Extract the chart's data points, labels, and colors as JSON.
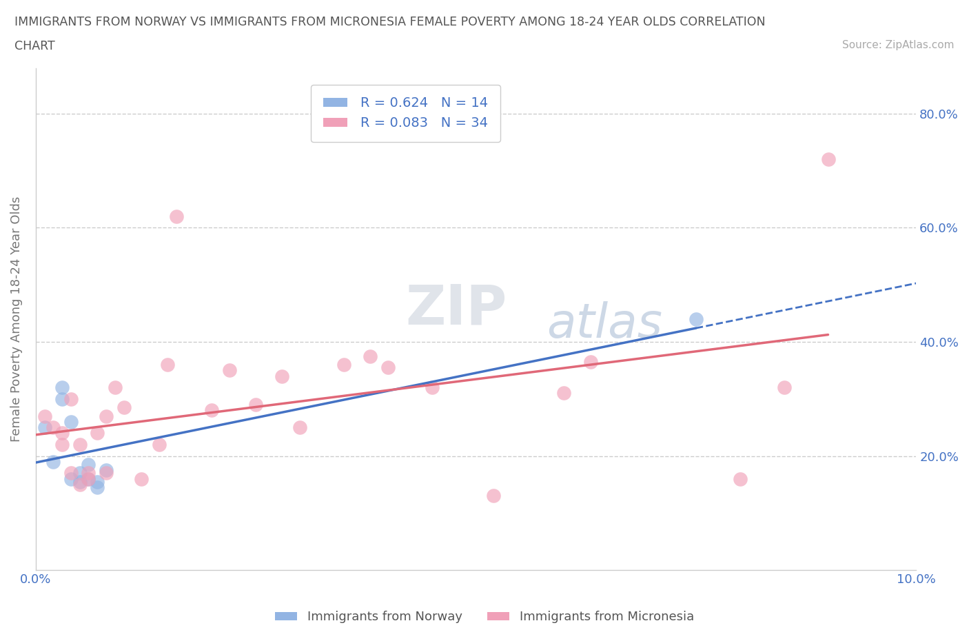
{
  "title_line1": "IMMIGRANTS FROM NORWAY VS IMMIGRANTS FROM MICRONESIA FEMALE POVERTY AMONG 18-24 YEAR OLDS CORRELATION",
  "title_line2": "CHART",
  "source_text": "Source: ZipAtlas.com",
  "ylabel": "Female Poverty Among 18-24 Year Olds",
  "xlim": [
    0.0,
    0.1
  ],
  "ylim": [
    0.0,
    0.88
  ],
  "norway_color": "#92b4e3",
  "micronesia_color": "#f0a0b8",
  "norway_line_color": "#4472c4",
  "micronesia_line_color": "#e06878",
  "norway_R": 0.624,
  "norway_N": 14,
  "micronesia_R": 0.083,
  "micronesia_N": 34,
  "norway_scatter_x": [
    0.001,
    0.002,
    0.003,
    0.003,
    0.004,
    0.004,
    0.005,
    0.005,
    0.006,
    0.006,
    0.007,
    0.007,
    0.008,
    0.075
  ],
  "norway_scatter_y": [
    0.25,
    0.19,
    0.3,
    0.32,
    0.16,
    0.26,
    0.155,
    0.17,
    0.16,
    0.185,
    0.155,
    0.145,
    0.175,
    0.44
  ],
  "micronesia_scatter_x": [
    0.001,
    0.002,
    0.003,
    0.003,
    0.004,
    0.004,
    0.005,
    0.005,
    0.006,
    0.006,
    0.007,
    0.008,
    0.008,
    0.009,
    0.01,
    0.012,
    0.014,
    0.015,
    0.016,
    0.02,
    0.022,
    0.025,
    0.028,
    0.03,
    0.035,
    0.038,
    0.04,
    0.045,
    0.052,
    0.06,
    0.063,
    0.08,
    0.085,
    0.09
  ],
  "micronesia_scatter_y": [
    0.27,
    0.25,
    0.24,
    0.22,
    0.3,
    0.17,
    0.22,
    0.15,
    0.17,
    0.16,
    0.24,
    0.27,
    0.17,
    0.32,
    0.285,
    0.16,
    0.22,
    0.36,
    0.62,
    0.28,
    0.35,
    0.29,
    0.34,
    0.25,
    0.36,
    0.375,
    0.355,
    0.32,
    0.13,
    0.31,
    0.365,
    0.16,
    0.32,
    0.72
  ],
  "watermark_zip": "ZIP",
  "watermark_atlas": "atlas",
  "background_color": "#ffffff",
  "grid_color": "#cccccc",
  "title_color": "#555555",
  "source_color": "#aaaaaa",
  "tick_color": "#4472c4",
  "ylabel_color": "#777777"
}
